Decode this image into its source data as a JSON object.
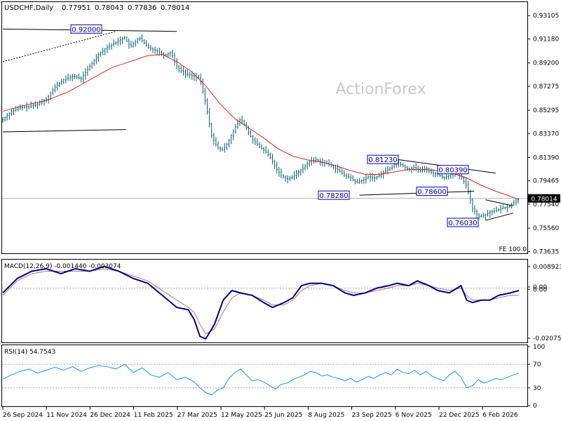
{
  "header": {
    "symbol": "USDCHF,Daily",
    "open": "0.77951",
    "high": "0.78043",
    "low": "0.77836",
    "close": "0.78014"
  },
  "watermark": "ActionForex",
  "colors": {
    "candle": "#00606a",
    "ma": "#e0201f",
    "macd": "#00007f",
    "macd_signal": "#b07080",
    "rsi": "#1e90ff",
    "level_box": "#0000a0"
  },
  "chart_data": [
    {
      "type": "candlestick",
      "name": "price",
      "ylim": [
        0.7348,
        0.9422
      ],
      "yticks": [
        "0.93105",
        "0.91180",
        "0.89200",
        "0.87275",
        "0.85295",
        "0.83370",
        "0.81390",
        "0.79465",
        "0.77540",
        "0.75560",
        "0.73635"
      ],
      "x_tick_labels": [
        "26 Sep 2024",
        "11 Nov 2024",
        "26 Dec 2024",
        "11 Feb 2025",
        "27 Mar 2025",
        "12 May 2025",
        "25 Jun 2025",
        "8 Aug 2025",
        "23 Sep 2025",
        "6 Nov 2025",
        "22 Dec 2025",
        "6 Feb 2026"
      ],
      "current_price": "0.78014",
      "level_labels": [
        {
          "text": "0.92000",
          "value": 0.92
        },
        {
          "text": "0.81230",
          "value": 0.8123
        },
        {
          "text": "0.80390",
          "value": 0.8039
        },
        {
          "text": "0.78280",
          "value": 0.7828
        },
        {
          "text": "0.78600",
          "value": 0.786
        },
        {
          "text": "0.76030",
          "value": 0.7603
        }
      ],
      "fe_label": "FE 100.0",
      "close_path": [
        [
          0,
          0.845
        ],
        [
          6,
          0.852
        ],
        [
          12,
          0.855
        ],
        [
          18,
          0.856
        ],
        [
          24,
          0.858
        ],
        [
          30,
          0.862
        ],
        [
          36,
          0.872
        ],
        [
          42,
          0.878
        ],
        [
          48,
          0.881
        ],
        [
          54,
          0.879
        ],
        [
          60,
          0.889
        ],
        [
          66,
          0.899
        ],
        [
          72,
          0.905
        ],
        [
          78,
          0.909
        ],
        [
          84,
          0.913
        ],
        [
          88,
          0.905
        ],
        [
          94,
          0.913
        ],
        [
          100,
          0.905
        ],
        [
          106,
          0.902
        ],
        [
          112,
          0.898
        ],
        [
          116,
          0.901
        ],
        [
          120,
          0.889
        ],
        [
          126,
          0.883
        ],
        [
          132,
          0.881
        ],
        [
          136,
          0.879
        ],
        [
          140,
          0.858
        ],
        [
          144,
          0.832
        ],
        [
          148,
          0.822
        ],
        [
          152,
          0.82
        ],
        [
          156,
          0.828
        ],
        [
          160,
          0.838
        ],
        [
          164,
          0.846
        ],
        [
          168,
          0.838
        ],
        [
          172,
          0.829
        ],
        [
          176,
          0.824
        ],
        [
          180,
          0.82
        ],
        [
          184,
          0.815
        ],
        [
          188,
          0.806
        ],
        [
          192,
          0.799
        ],
        [
          196,
          0.796
        ],
        [
          200,
          0.798
        ],
        [
          204,
          0.802
        ],
        [
          208,
          0.806
        ],
        [
          212,
          0.811
        ],
        [
          216,
          0.812
        ],
        [
          220,
          0.81
        ],
        [
          224,
          0.809
        ],
        [
          228,
          0.806
        ],
        [
          232,
          0.803
        ],
        [
          236,
          0.799
        ],
        [
          240,
          0.797
        ],
        [
          244,
          0.793
        ],
        [
          248,
          0.795
        ],
        [
          252,
          0.798
        ],
        [
          256,
          0.797
        ],
        [
          260,
          0.799
        ],
        [
          264,
          0.803
        ],
        [
          268,
          0.806
        ],
        [
          272,
          0.81
        ],
        [
          276,
          0.807
        ],
        [
          280,
          0.804
        ],
        [
          284,
          0.806
        ],
        [
          288,
          0.803
        ],
        [
          292,
          0.805
        ],
        [
          296,
          0.801
        ],
        [
          300,
          0.8
        ],
        [
          304,
          0.797
        ],
        [
          308,
          0.799
        ],
        [
          312,
          0.802
        ],
        [
          316,
          0.798
        ],
        [
          320,
          0.79
        ],
        [
          324,
          0.772
        ],
        [
          328,
          0.765
        ],
        [
          332,
          0.766
        ],
        [
          336,
          0.769
        ],
        [
          340,
          0.77
        ],
        [
          344,
          0.772
        ],
        [
          348,
          0.773
        ],
        [
          352,
          0.776
        ],
        [
          356,
          0.78
        ]
      ],
      "ma_path": [
        [
          0,
          0.852
        ],
        [
          15,
          0.857
        ],
        [
          30,
          0.861
        ],
        [
          45,
          0.868
        ],
        [
          60,
          0.878
        ],
        [
          75,
          0.888
        ],
        [
          90,
          0.894
        ],
        [
          100,
          0.898
        ],
        [
          110,
          0.899
        ],
        [
          120,
          0.893
        ],
        [
          130,
          0.885
        ],
        [
          140,
          0.873
        ],
        [
          150,
          0.858
        ],
        [
          160,
          0.846
        ],
        [
          170,
          0.838
        ],
        [
          180,
          0.83
        ],
        [
          190,
          0.821
        ],
        [
          200,
          0.815
        ],
        [
          210,
          0.812
        ],
        [
          220,
          0.81
        ],
        [
          230,
          0.807
        ],
        [
          240,
          0.803
        ],
        [
          250,
          0.8
        ],
        [
          260,
          0.8
        ],
        [
          270,
          0.802
        ],
        [
          280,
          0.804
        ],
        [
          290,
          0.804
        ],
        [
          300,
          0.803
        ],
        [
          310,
          0.801
        ],
        [
          320,
          0.797
        ],
        [
          330,
          0.791
        ],
        [
          340,
          0.786
        ],
        [
          350,
          0.782
        ],
        [
          356,
          0.779
        ]
      ],
      "trendlines": [
        {
          "from": [
            0,
            0.92
          ],
          "to": [
            120,
            0.918
          ]
        },
        {
          "from": [
            0,
            0.835
          ],
          "to": [
            85,
            0.837
          ]
        },
        {
          "from": [
            0,
            0.893
          ],
          "to": [
            78,
            0.918
          ],
          "dashed": true
        },
        {
          "from": [
            246,
            0.7828
          ],
          "to": [
            325,
            0.786
          ]
        },
        {
          "from": [
            272,
            0.8123
          ],
          "to": [
            340,
            0.801
          ]
        },
        {
          "from": [
            333,
            0.779
          ],
          "to": [
            352,
            0.774
          ]
        },
        {
          "from": [
            333,
            0.762
          ],
          "to": [
            352,
            0.768
          ]
        }
      ]
    },
    {
      "type": "line",
      "name": "MACD",
      "label": "MACD(12,26,9) -0.001440 -0.003074",
      "ylim": [
        -0.0225,
        0.0118
      ],
      "yticks": [
        "0.008923",
        "0.00",
        "0.00",
        "-0.020759"
      ],
      "ytick_values": [
        0.008923,
        0.0005,
        -0.0005,
        -0.020759
      ],
      "macd_path": [
        [
          0,
          -0.002
        ],
        [
          10,
          0.004
        ],
        [
          20,
          0.007
        ],
        [
          30,
          0.008
        ],
        [
          40,
          0.006
        ],
        [
          50,
          0.008
        ],
        [
          60,
          0.007
        ],
        [
          70,
          0.009
        ],
        [
          80,
          0.007
        ],
        [
          90,
          0.004
        ],
        [
          100,
          0.002
        ],
        [
          110,
          -0.003
        ],
        [
          120,
          -0.008
        ],
        [
          128,
          -0.009
        ],
        [
          132,
          -0.013
        ],
        [
          136,
          -0.02
        ],
        [
          140,
          -0.021
        ],
        [
          146,
          -0.015
        ],
        [
          152,
          -0.005
        ],
        [
          158,
          -0.001
        ],
        [
          164,
          -0.002
        ],
        [
          172,
          -0.003
        ],
        [
          180,
          -0.006
        ],
        [
          186,
          -0.008
        ],
        [
          194,
          -0.006
        ],
        [
          200,
          -0.004
        ],
        [
          206,
          0.001
        ],
        [
          212,
          0.002
        ],
        [
          220,
          0.002
        ],
        [
          228,
          0.001
        ],
        [
          236,
          -0.002
        ],
        [
          242,
          -0.003
        ],
        [
          250,
          -0.002
        ],
        [
          258,
          0.0
        ],
        [
          266,
          0.001
        ],
        [
          272,
          0.002
        ],
        [
          280,
          0.001
        ],
        [
          286,
          0.003
        ],
        [
          294,
          0.001
        ],
        [
          300,
          -0.001
        ],
        [
          308,
          -0.002
        ],
        [
          316,
          0.001
        ],
        [
          320,
          -0.005
        ],
        [
          324,
          -0.006
        ],
        [
          330,
          -0.005
        ],
        [
          336,
          -0.005
        ],
        [
          342,
          -0.003
        ],
        [
          350,
          -0.002
        ],
        [
          356,
          -0.001
        ]
      ],
      "signal_path": [
        [
          0,
          -0.003
        ],
        [
          10,
          0.003
        ],
        [
          20,
          0.006
        ],
        [
          30,
          0.007
        ],
        [
          40,
          0.007
        ],
        [
          50,
          0.007
        ],
        [
          60,
          0.007
        ],
        [
          70,
          0.008
        ],
        [
          80,
          0.007
        ],
        [
          90,
          0.005
        ],
        [
          100,
          0.003
        ],
        [
          110,
          -0.001
        ],
        [
          120,
          -0.005
        ],
        [
          128,
          -0.008
        ],
        [
          132,
          -0.01
        ],
        [
          136,
          -0.015
        ],
        [
          140,
          -0.019
        ],
        [
          146,
          -0.017
        ],
        [
          152,
          -0.01
        ],
        [
          158,
          -0.004
        ],
        [
          164,
          -0.002
        ],
        [
          172,
          -0.003
        ],
        [
          180,
          -0.005
        ],
        [
          186,
          -0.007
        ],
        [
          194,
          -0.007
        ],
        [
          200,
          -0.005
        ],
        [
          206,
          -0.001
        ],
        [
          212,
          0.001
        ],
        [
          220,
          0.002
        ],
        [
          228,
          0.001
        ],
        [
          236,
          -0.001
        ],
        [
          242,
          -0.002
        ],
        [
          250,
          -0.002
        ],
        [
          258,
          -0.001
        ],
        [
          266,
          0.0
        ],
        [
          272,
          0.001
        ],
        [
          280,
          0.001
        ],
        [
          286,
          0.002
        ],
        [
          294,
          0.001
        ],
        [
          300,
          0.0
        ],
        [
          308,
          -0.001
        ],
        [
          316,
          0.0
        ],
        [
          320,
          -0.003
        ],
        [
          324,
          -0.005
        ],
        [
          330,
          -0.005
        ],
        [
          336,
          -0.005
        ],
        [
          342,
          -0.004
        ],
        [
          350,
          -0.003
        ],
        [
          356,
          -0.003
        ]
      ]
    },
    {
      "type": "line",
      "name": "RSI",
      "label": "RSI(14) 54.7543",
      "ylim": [
        0,
        100
      ],
      "yticks": [
        "100",
        "70",
        "30",
        "0"
      ],
      "ytick_values": [
        100,
        70,
        30,
        0
      ],
      "levels": [
        70,
        30
      ],
      "rsi_path": [
        [
          0,
          45
        ],
        [
          6,
          52
        ],
        [
          12,
          58
        ],
        [
          18,
          62
        ],
        [
          24,
          55
        ],
        [
          30,
          60
        ],
        [
          36,
          65
        ],
        [
          42,
          60
        ],
        [
          48,
          66
        ],
        [
          54,
          58
        ],
        [
          60,
          64
        ],
        [
          66,
          68
        ],
        [
          72,
          66
        ],
        [
          78,
          62
        ],
        [
          84,
          70
        ],
        [
          90,
          56
        ],
        [
          96,
          64
        ],
        [
          102,
          52
        ],
        [
          108,
          48
        ],
        [
          114,
          56
        ],
        [
          120,
          44
        ],
        [
          126,
          48
        ],
        [
          132,
          40
        ],
        [
          136,
          30
        ],
        [
          140,
          22
        ],
        [
          144,
          18
        ],
        [
          148,
          26
        ],
        [
          152,
          30
        ],
        [
          156,
          46
        ],
        [
          160,
          56
        ],
        [
          164,
          62
        ],
        [
          168,
          52
        ],
        [
          172,
          42
        ],
        [
          176,
          44
        ],
        [
          180,
          40
        ],
        [
          184,
          34
        ],
        [
          188,
          28
        ],
        [
          192,
          36
        ],
        [
          196,
          38
        ],
        [
          200,
          44
        ],
        [
          204,
          48
        ],
        [
          208,
          52
        ],
        [
          212,
          58
        ],
        [
          216,
          56
        ],
        [
          220,
          50
        ],
        [
          224,
          52
        ],
        [
          228,
          48
        ],
        [
          232,
          46
        ],
        [
          236,
          42
        ],
        [
          240,
          46
        ],
        [
          244,
          40
        ],
        [
          248,
          44
        ],
        [
          252,
          50
        ],
        [
          256,
          46
        ],
        [
          260,
          52
        ],
        [
          264,
          56
        ],
        [
          268,
          52
        ],
        [
          272,
          62
        ],
        [
          276,
          56
        ],
        [
          280,
          54
        ],
        [
          284,
          60
        ],
        [
          288,
          52
        ],
        [
          292,
          58
        ],
        [
          296,
          50
        ],
        [
          300,
          46
        ],
        [
          304,
          42
        ],
        [
          308,
          52
        ],
        [
          312,
          58
        ],
        [
          316,
          48
        ],
        [
          320,
          30
        ],
        [
          324,
          34
        ],
        [
          328,
          44
        ],
        [
          332,
          38
        ],
        [
          336,
          42
        ],
        [
          340,
          46
        ],
        [
          344,
          44
        ],
        [
          348,
          48
        ],
        [
          352,
          52
        ],
        [
          356,
          55
        ]
      ]
    }
  ]
}
